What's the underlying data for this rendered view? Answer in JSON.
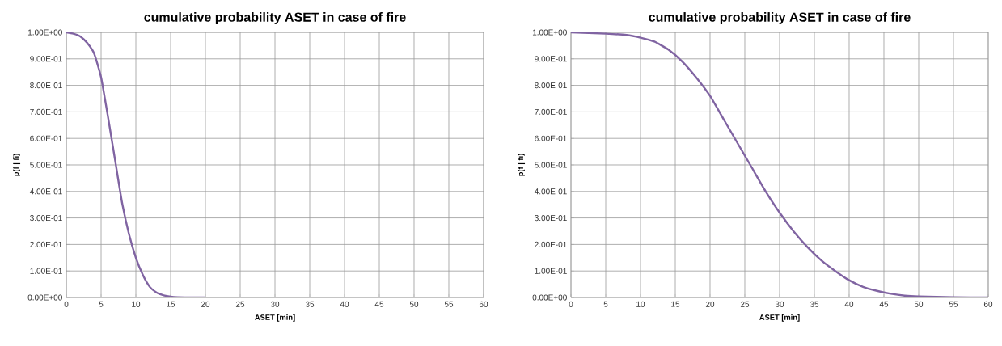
{
  "chart_data": [
    {
      "type": "line",
      "title": "cumulative probability ASET in case of fire",
      "xlabel": "ASET [min]",
      "ylabel": "p(f | fi)",
      "x": [
        0,
        1,
        2,
        3,
        4,
        5,
        6,
        7,
        8,
        9,
        10,
        11,
        12,
        13,
        14,
        15,
        16,
        18,
        20
      ],
      "series": [
        {
          "color": "#8064a2",
          "values": [
            1.0,
            0.995,
            0.985,
            0.96,
            0.92,
            0.83,
            0.68,
            0.52,
            0.36,
            0.24,
            0.15,
            0.085,
            0.04,
            0.018,
            0.008,
            0.003,
            0.001,
            0.0,
            0.0
          ]
        }
      ],
      "xlim": [
        0,
        60
      ],
      "xticks": [
        0,
        5,
        10,
        15,
        20,
        25,
        30,
        35,
        40,
        45,
        50,
        55,
        60
      ],
      "ylim": [
        0,
        1
      ],
      "yticks": [
        {
          "value": 0,
          "label": "0.00E+00"
        },
        {
          "value": 0.1,
          "label": "1.00E-01"
        },
        {
          "value": 0.2,
          "label": "2.00E-01"
        },
        {
          "value": 0.3,
          "label": "3.00E-01"
        },
        {
          "value": 0.4,
          "label": "4.00E-01"
        },
        {
          "value": 0.5,
          "label": "5.00E-01"
        },
        {
          "value": 0.6,
          "label": "6.00E-01"
        },
        {
          "value": 0.7,
          "label": "7.00E-01"
        },
        {
          "value": 0.8,
          "label": "8.00E-01"
        },
        {
          "value": 0.9,
          "label": "9.00E-01"
        },
        {
          "value": 1,
          "label": "1.00E+00"
        }
      ],
      "grid": true
    },
    {
      "type": "line",
      "title": "cumulative probability ASET in case of fire",
      "xlabel": "ASET [min]",
      "ylabel": "p(f | fi)",
      "x": [
        0,
        5,
        8,
        10,
        12,
        14,
        16,
        18,
        20,
        22,
        24,
        26,
        28,
        30,
        32,
        34,
        36,
        38,
        40,
        42,
        44,
        46,
        48,
        50,
        55,
        60
      ],
      "series": [
        {
          "color": "#8064a2",
          "values": [
            1.0,
            0.995,
            0.99,
            0.98,
            0.965,
            0.935,
            0.89,
            0.83,
            0.76,
            0.67,
            0.58,
            0.49,
            0.4,
            0.32,
            0.25,
            0.19,
            0.14,
            0.1,
            0.065,
            0.04,
            0.025,
            0.014,
            0.007,
            0.004,
            0.001,
            0.0
          ]
        }
      ],
      "xlim": [
        0,
        60
      ],
      "xticks": [
        0,
        5,
        10,
        15,
        20,
        25,
        30,
        35,
        40,
        45,
        50,
        55,
        60
      ],
      "ylim": [
        0,
        1
      ],
      "yticks": [
        {
          "value": 0,
          "label": "0.00E+00"
        },
        {
          "value": 0.1,
          "label": "1.00E-01"
        },
        {
          "value": 0.2,
          "label": "2.00E-01"
        },
        {
          "value": 0.3,
          "label": "3.00E-01"
        },
        {
          "value": 0.4,
          "label": "4.00E-01"
        },
        {
          "value": 0.5,
          "label": "5.00E-01"
        },
        {
          "value": 0.6,
          "label": "6.00E-01"
        },
        {
          "value": 0.7,
          "label": "7.00E-01"
        },
        {
          "value": 0.8,
          "label": "8.00E-01"
        },
        {
          "value": 0.9,
          "label": "9.00E-01"
        },
        {
          "value": 1,
          "label": "1.00E+00"
        }
      ],
      "grid": true
    }
  ]
}
